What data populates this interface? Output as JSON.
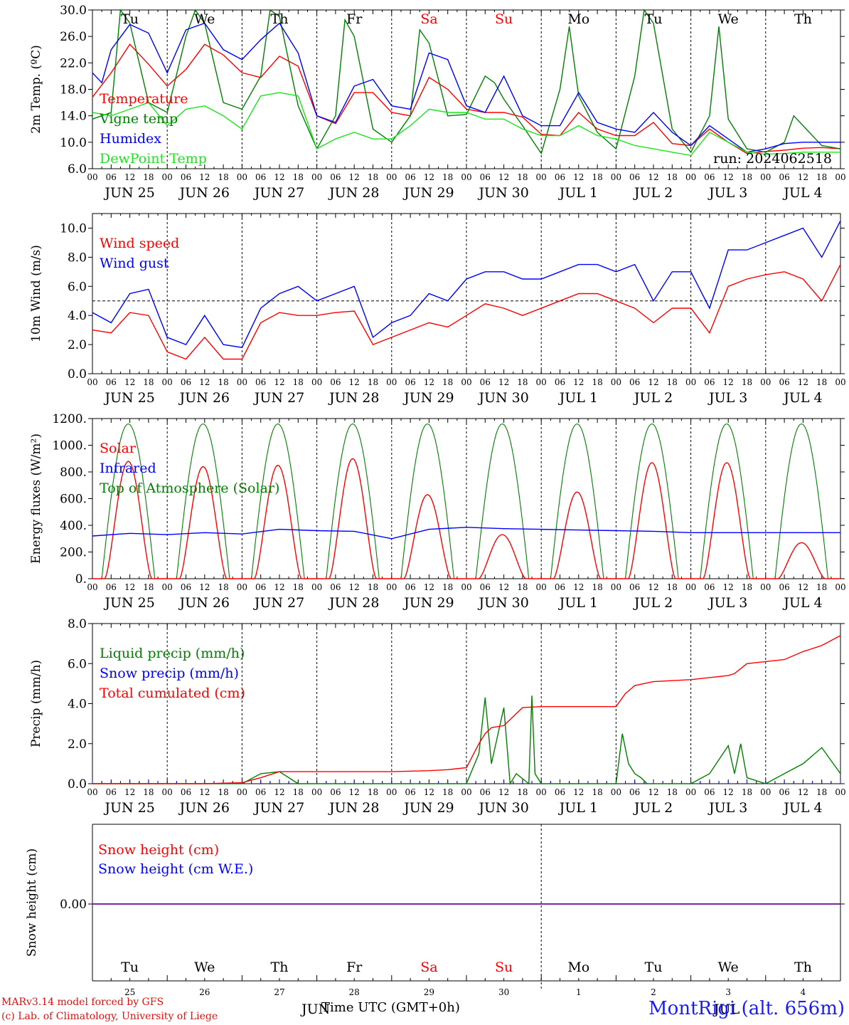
{
  "colors": {
    "red": "#ff0000",
    "green": "#008000",
    "blue": "#0000ff",
    "lightgreen": "#19e619",
    "purple": "#7a2a9a",
    "station": "#1a1aff"
  },
  "days": [
    "Tu",
    "We",
    "Th",
    "Fr",
    "Sa",
    "Su",
    "Mo",
    "Tu",
    "We",
    "Th"
  ],
  "weekend_days": [
    "Sa",
    "Su"
  ],
  "date_labels": [
    "JUN 25",
    "JUN 26",
    "JUN 27",
    "JUN 28",
    "JUN 29",
    "JUN 30",
    "JUL  1",
    "JUL  2",
    "JUL  3",
    "JUL  4"
  ],
  "hour_ticks": [
    "00",
    "06",
    "12",
    "18"
  ],
  "last_tick": "00",
  "day_numbers": [
    "25",
    "26",
    "27",
    "28",
    "29",
    "30",
    "1",
    "2",
    "3",
    "4"
  ],
  "month_label_jun": "JUN",
  "month_label_jul": "JUL",
  "footer": {
    "model": "MARv3.14 model forced by GFS",
    "credit": "(c) Lab. of Climatology, University of Liege",
    "xlabel": "Time UTC (GMT+0h)",
    "station": "MontRigi (alt. 656m)"
  },
  "chart_data": [
    {
      "type": "line",
      "ylabel": "2m Temp. (ºC)",
      "ylim": [
        6.0,
        30.0
      ],
      "yticks": [
        "6.0",
        "10.0",
        "14.0",
        "18.0",
        "22.0",
        "26.0",
        "30.0"
      ],
      "annotation": "run: 2024062518",
      "x_unit": "hours since JUN 25 00 UTC",
      "series": [
        {
          "name": "Temperature",
          "color": "red",
          "x": [
            0,
            6,
            12,
            18,
            24,
            30,
            36,
            42,
            48,
            54,
            60,
            66,
            72,
            78,
            84,
            90,
            96,
            102,
            108,
            114,
            120,
            126,
            132,
            138,
            144,
            150,
            156,
            162,
            168,
            174,
            180,
            186,
            192,
            198,
            204,
            210,
            216,
            222,
            228,
            234,
            240
          ],
          "y": [
            16.8,
            20.5,
            24.8,
            21.8,
            18.5,
            21.0,
            24.8,
            23.2,
            20.5,
            19.8,
            23.0,
            21.5,
            14.0,
            12.8,
            17.5,
            17.5,
            14.5,
            14.0,
            19.8,
            18.0,
            15.0,
            14.5,
            14.5,
            13.8,
            11.2,
            11.0,
            14.5,
            12.0,
            11.0,
            11.0,
            13.0,
            9.8,
            9.5,
            12.0,
            10.0,
            8.3,
            8.6,
            8.8,
            9.1,
            9.2,
            9.0
          ]
        },
        {
          "name": "Vigne temp",
          "color": "green",
          "x": [
            0,
            6,
            9,
            12,
            18,
            24,
            30,
            33,
            36,
            42,
            48,
            54,
            57,
            60,
            66,
            72,
            78,
            81,
            84,
            90,
            96,
            102,
            105,
            108,
            114,
            120,
            126,
            129,
            132,
            138,
            144,
            150,
            153,
            156,
            162,
            168,
            174,
            177,
            180,
            186,
            192,
            198,
            201,
            204,
            210,
            216,
            222,
            225,
            228,
            234,
            240
          ],
          "y": [
            13.5,
            14.5,
            30.0,
            28.0,
            16.0,
            14.5,
            26.0,
            30.0,
            28.0,
            16.0,
            15.0,
            20.0,
            30.0,
            29.0,
            15.5,
            9.0,
            14.0,
            28.5,
            26.0,
            12.0,
            10.0,
            14.0,
            27.0,
            25.0,
            14.0,
            14.2,
            20.0,
            19.0,
            16.5,
            12.5,
            8.3,
            18.0,
            27.5,
            17.0,
            11.5,
            9.0,
            20.0,
            30.0,
            28.0,
            12.0,
            8.5,
            14.0,
            27.5,
            13.5,
            9.0,
            8.5,
            10.0,
            14.0,
            12.5,
            9.5,
            9.0
          ]
        },
        {
          "name": "Humidex",
          "color": "blue",
          "x": [
            0,
            3,
            6,
            12,
            18,
            24,
            30,
            36,
            42,
            48,
            54,
            60,
            66,
            72,
            78,
            84,
            90,
            96,
            102,
            108,
            114,
            120,
            126,
            132,
            138,
            144,
            150,
            156,
            162,
            168,
            174,
            180,
            186,
            192,
            198,
            204,
            210,
            216,
            222,
            228,
            234,
            240
          ],
          "y": [
            20.5,
            19.0,
            24.0,
            27.8,
            26.5,
            20.5,
            27.0,
            28.0,
            24.0,
            22.5,
            25.5,
            28.0,
            23.5,
            14.0,
            13.0,
            18.5,
            19.5,
            15.5,
            15.0,
            23.5,
            22.5,
            15.5,
            14.5,
            20.0,
            14.0,
            12.5,
            12.5,
            17.5,
            13.0,
            12.0,
            11.5,
            14.5,
            11.5,
            9.5,
            12.5,
            10.5,
            8.5,
            9.0,
            9.8,
            10.0,
            10.0,
            10.0
          ]
        },
        {
          "name": "DewPoint Temp",
          "color": "lightgreen",
          "x": [
            0,
            6,
            12,
            18,
            24,
            30,
            36,
            42,
            48,
            54,
            60,
            66,
            72,
            78,
            84,
            90,
            96,
            102,
            108,
            114,
            120,
            126,
            132,
            138,
            144,
            150,
            156,
            162,
            168,
            174,
            180,
            186,
            192,
            198,
            204,
            210,
            216,
            222,
            228,
            234,
            240
          ],
          "y": [
            14.5,
            14.0,
            15.0,
            16.0,
            12.5,
            15.0,
            15.5,
            14.0,
            12.0,
            17.0,
            17.5,
            17.0,
            9.0,
            10.5,
            11.5,
            10.5,
            10.5,
            12.5,
            15.0,
            14.5,
            14.5,
            13.5,
            13.5,
            12.0,
            11.0,
            11.0,
            12.5,
            11.0,
            10.5,
            9.5,
            9.0,
            8.5,
            8.0,
            11.5,
            10.0,
            8.5,
            8.2,
            8.3,
            8.5,
            8.5,
            8.5
          ]
        }
      ]
    },
    {
      "type": "line",
      "ylabel": "10m Wind (m/s)",
      "ylim": [
        0.0,
        11.0
      ],
      "yticks": [
        "0.0",
        "2.0",
        "4.0",
        "6.0",
        "8.0",
        "10.0"
      ],
      "reference_line": 5.0,
      "x_unit": "hours since JUN 25 00 UTC",
      "series": [
        {
          "name": "Wind speed",
          "color": "red",
          "x": [
            0,
            6,
            12,
            18,
            24,
            30,
            36,
            42,
            48,
            54,
            60,
            66,
            72,
            78,
            84,
            90,
            96,
            102,
            108,
            114,
            120,
            126,
            132,
            138,
            144,
            150,
            156,
            162,
            168,
            174,
            180,
            186,
            192,
            198,
            204,
            210,
            216,
            222,
            228,
            234,
            240
          ],
          "y": [
            3.0,
            2.8,
            4.2,
            4.0,
            1.5,
            1.0,
            2.5,
            1.0,
            1.0,
            3.5,
            4.2,
            4.0,
            4.0,
            4.2,
            4.3,
            2.0,
            2.5,
            3.0,
            3.5,
            3.2,
            4.0,
            4.8,
            4.5,
            4.0,
            4.5,
            5.0,
            5.5,
            5.5,
            5.0,
            4.5,
            3.5,
            4.5,
            4.5,
            2.8,
            6.0,
            6.5,
            6.8,
            7.0,
            6.5,
            5.0,
            7.5
          ]
        },
        {
          "name": "Wind gust",
          "color": "blue",
          "x": [
            0,
            6,
            12,
            18,
            24,
            30,
            36,
            42,
            48,
            54,
            60,
            66,
            72,
            78,
            84,
            90,
            96,
            102,
            108,
            114,
            120,
            126,
            132,
            138,
            144,
            150,
            156,
            162,
            168,
            174,
            180,
            186,
            192,
            198,
            204,
            210,
            216,
            222,
            228,
            234,
            240
          ],
          "y": [
            4.2,
            3.5,
            5.5,
            5.8,
            2.5,
            2.0,
            4.0,
            2.0,
            1.8,
            4.5,
            5.5,
            6.0,
            5.0,
            5.5,
            6.0,
            2.5,
            3.5,
            4.0,
            5.5,
            5.0,
            6.5,
            7.0,
            7.0,
            6.5,
            6.5,
            7.0,
            7.5,
            7.5,
            7.0,
            7.5,
            5.0,
            7.0,
            7.0,
            4.5,
            8.5,
            8.5,
            9.0,
            9.5,
            10.0,
            8.0,
            10.5
          ]
        }
      ]
    },
    {
      "type": "line",
      "ylabel": "Energy fluxes (W/m²)",
      "ylim": [
        0,
        1200
      ],
      "yticks": [
        "0.",
        "200.",
        "400.",
        "600.",
        "800.",
        "1000.",
        "1200."
      ],
      "x_unit": "hours since JUN 25 00 UTC",
      "toa_peak": 1160,
      "solar_peaks": [
        880,
        840,
        850,
        900,
        630,
        330,
        650,
        870,
        870,
        270
      ],
      "series": [
        {
          "name": "Solar",
          "color": "red"
        },
        {
          "name": "Infrared",
          "color": "blue",
          "x": [
            0,
            12,
            24,
            36,
            48,
            60,
            72,
            84,
            96,
            108,
            120,
            132,
            144,
            156,
            168,
            180,
            192,
            204,
            216,
            228,
            240
          ],
          "y": [
            320,
            340,
            330,
            345,
            335,
            370,
            360,
            355,
            300,
            370,
            385,
            375,
            370,
            365,
            360,
            355,
            345,
            345,
            345,
            345,
            345
          ]
        },
        {
          "name": "Top of Atmosphere (Solar)",
          "color": "green"
        }
      ]
    },
    {
      "type": "line",
      "ylabel": "Precip (mm/h)",
      "ylim": [
        0.0,
        8.0
      ],
      "yticks": [
        "0.0",
        "2.0",
        "4.0",
        "6.0",
        "8.0"
      ],
      "x_unit": "hours since JUN 25 00 UTC",
      "series": [
        {
          "name": "Liquid precip (mm/h)",
          "color": "green",
          "x": [
            0,
            48,
            54,
            60,
            66,
            72,
            120,
            124,
            126,
            128,
            132,
            134,
            136,
            140,
            141,
            142,
            144,
            168,
            170,
            172,
            174,
            176,
            178,
            180,
            192,
            198,
            204,
            206,
            208,
            210,
            216,
            222,
            228,
            234,
            240
          ],
          "y": [
            0,
            0,
            0.5,
            0.6,
            0,
            0,
            0,
            1.5,
            4.3,
            1.0,
            3.8,
            0,
            0.5,
            0,
            4.4,
            0.5,
            0,
            0,
            2.5,
            1.0,
            0.5,
            0.3,
            0,
            0,
            0,
            0.5,
            1.9,
            0.5,
            2.0,
            0.3,
            0,
            0.5,
            1.0,
            1.8,
            0.5
          ]
        },
        {
          "name": "Snow precip (mm/h)",
          "color": "blue",
          "x": [
            0,
            240
          ],
          "y": [
            0,
            0
          ]
        },
        {
          "name": "Total cumulated (cm)",
          "color": "red",
          "x": [
            0,
            36,
            48,
            54,
            60,
            66,
            72,
            96,
            108,
            114,
            120,
            124,
            126,
            128,
            132,
            138,
            144,
            156,
            168,
            171,
            174,
            180,
            192,
            198,
            204,
            206,
            210,
            216,
            222,
            228,
            234,
            240
          ],
          "y": [
            0,
            0,
            0.05,
            0.3,
            0.6,
            0.6,
            0.6,
            0.6,
            0.65,
            0.7,
            0.8,
            2.0,
            2.5,
            2.8,
            2.9,
            3.8,
            3.85,
            3.85,
            3.85,
            4.5,
            4.9,
            5.1,
            5.2,
            5.3,
            5.4,
            5.5,
            6.0,
            6.1,
            6.2,
            6.6,
            6.9,
            7.4
          ]
        }
      ]
    },
    {
      "type": "line",
      "ylabel": "Snow height (cm)",
      "yticks": [
        "0.00"
      ],
      "x_unit": "hours since JUN 25 00 UTC",
      "series": [
        {
          "name": "Snow height (cm)",
          "color": "red",
          "x": [
            0,
            240
          ],
          "y": [
            0,
            0
          ]
        },
        {
          "name": "Snow height (cm W.E.)",
          "color": "blue",
          "x": [
            0,
            240
          ],
          "y": [
            0,
            0
          ]
        }
      ]
    }
  ]
}
